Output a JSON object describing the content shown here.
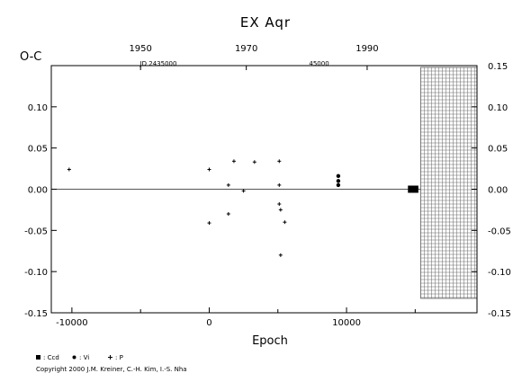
{
  "chart_data": {
    "type": "scatter",
    "title": "EX Aqr",
    "xlabel": "Epoch",
    "ylabel": "O-C",
    "xlim": [
      -11500,
      19500
    ],
    "ylim": [
      -0.15,
      0.15
    ],
    "x_ticks": [
      "-10000",
      "0",
      "10000"
    ],
    "y_ticks_left": [
      "-0.15",
      "-0.10",
      "-0.05",
      "0.00",
      "0.05",
      "0.10"
    ],
    "y_ticks_right": [
      "-0.15",
      "-0.10",
      "-0.05",
      "0.00",
      "0.05",
      "0.10",
      "0.15"
    ],
    "top_axis": {
      "year_ticks": [
        {
          "label": "1950",
          "epoch": -5000
        },
        {
          "label": "1970",
          "epoch": 2700
        },
        {
          "label": "1990",
          "epoch": 11500
        }
      ],
      "jd_labels": [
        {
          "label": "JD 2435000",
          "epoch": -3700
        },
        {
          "label": "45000",
          "epoch": 8000
        }
      ]
    },
    "zero_line": 0,
    "hatched_region": [
      15400,
      19500
    ],
    "series": [
      {
        "name": ": Ccd",
        "marker": "square",
        "points": [
          [
            14700,
            0.0
          ],
          [
            15000,
            0.0
          ]
        ]
      },
      {
        "name": ": Vi",
        "marker": "circle",
        "points": [
          [
            9400,
            0.016
          ],
          [
            9400,
            0.01
          ],
          [
            9400,
            0.005
          ]
        ]
      },
      {
        "name": ": P",
        "marker": "plus",
        "points": [
          [
            -10200,
            0.024
          ],
          [
            0,
            0.024
          ],
          [
            1400,
            0.005
          ],
          [
            1800,
            0.034
          ],
          [
            2500,
            -0.002
          ],
          [
            3300,
            0.033
          ],
          [
            5100,
            0.034
          ],
          [
            5100,
            0.005
          ],
          [
            5100,
            -0.018
          ],
          [
            5200,
            -0.025
          ],
          [
            5500,
            -0.04
          ],
          [
            5200,
            -0.08
          ],
          [
            0,
            -0.041
          ],
          [
            1400,
            -0.03
          ]
        ]
      }
    ],
    "grid": false,
    "legend": "bottom-left"
  },
  "copyright": "Copyright 2000 J.M. Kreiner, C.-H. Kim, I.-S. Nha",
  "legend_entries": [
    {
      "label": ": Ccd",
      "marker": "square"
    },
    {
      "label": ": Vi",
      "marker": "circle"
    },
    {
      "label": ": P",
      "marker": "plus"
    }
  ]
}
